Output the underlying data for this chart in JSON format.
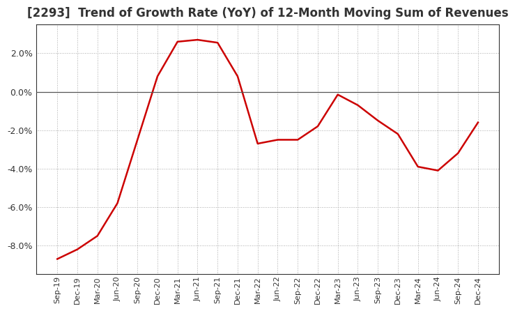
{
  "title": "[2293]  Trend of Growth Rate (YoY) of 12-Month Moving Sum of Revenues",
  "title_fontsize": 12,
  "line_color": "#cc0000",
  "background_color": "#ffffff",
  "grid_color": "#aaaaaa",
  "x_labels": [
    "Sep-19",
    "Dec-19",
    "Mar-20",
    "Jun-20",
    "Sep-20",
    "Dec-20",
    "Mar-21",
    "Jun-21",
    "Sep-21",
    "Dec-21",
    "Mar-22",
    "Jun-22",
    "Sep-22",
    "Dec-22",
    "Mar-23",
    "Jun-23",
    "Sep-23",
    "Dec-23",
    "Mar-24",
    "Jun-24",
    "Sep-24",
    "Dec-24"
  ],
  "y_values": [
    -8.7,
    -8.2,
    -7.5,
    -5.8,
    -2.5,
    0.8,
    2.6,
    2.7,
    2.55,
    0.8,
    -2.7,
    -2.5,
    -2.5,
    -1.8,
    -0.15,
    -0.7,
    -1.5,
    -2.2,
    -3.9,
    -4.1,
    -3.2,
    -1.6
  ],
  "ylim": [
    -9.5,
    3.5
  ],
  "yticks": [
    2.0,
    0.0,
    -2.0,
    -4.0,
    -6.0,
    -8.0
  ]
}
